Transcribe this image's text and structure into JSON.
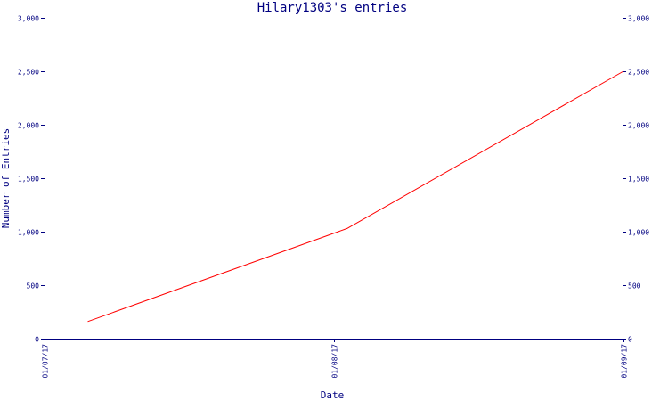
{
  "chart_data": {
    "type": "line",
    "title": "Hilary1303's entries",
    "xlabel": "Date",
    "ylabel": "Number of Entries",
    "ylim": [
      0,
      3000
    ],
    "y_ticks": [
      "0",
      "500",
      "1,000",
      "1,500",
      "2,000",
      "2,500",
      "3,000"
    ],
    "y_tick_values": [
      0,
      500,
      1000,
      1500,
      2000,
      2500,
      3000
    ],
    "x_tick_labels": [
      "01/07/17",
      "01/08/17",
      "01/09/17"
    ],
    "x_tick_values": [
      "2017-01-07",
      "2017-01-08",
      "2017-01-09"
    ],
    "xlim": [
      "2017-01-07",
      "2017-01-09"
    ],
    "grid": false,
    "right_axis": true,
    "series": [
      {
        "color": "#ff0000",
        "x": [
          "2017-01-07T03:35",
          "2017-01-08T01:05",
          "2017-01-09"
        ],
        "values": [
          160,
          1030,
          2500
        ]
      }
    ]
  }
}
